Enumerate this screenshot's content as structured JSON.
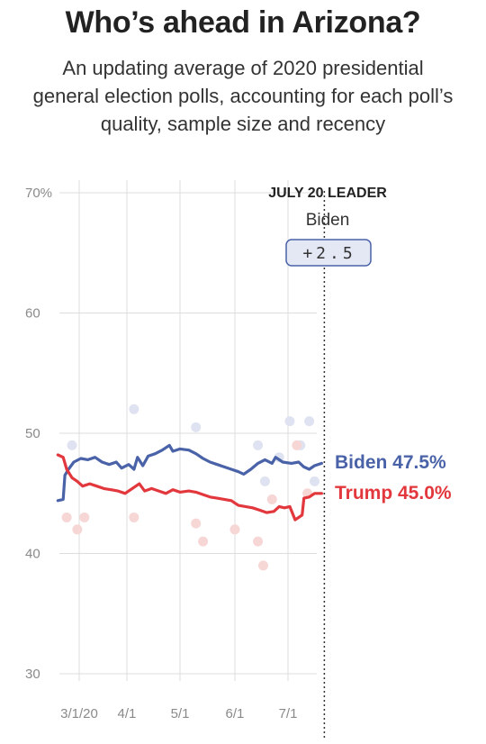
{
  "header": {
    "title": "Who’s ahead in Arizona?",
    "subtitle": "An updating average of 2020 presidential general election polls, accounting for each poll’s quality, sample size and recency"
  },
  "leader_box": {
    "heading": "JULY 20 LEADER",
    "candidate": "Biden",
    "margin": "+2.5"
  },
  "colors": {
    "biden": "#4a63a8",
    "trump": "#e2383d",
    "biden_dots": "#dfe3f1",
    "trump_dots": "#f7d6d6",
    "margin_box_fill": "#e4e8f5",
    "grid": "#dddddd"
  },
  "chart_data": {
    "type": "line",
    "y_ticks": [
      "70%",
      "60",
      "50",
      "40",
      "30"
    ],
    "x_ticks": [
      "3/1/20",
      "4/1",
      "5/1",
      "6/1",
      "7/1"
    ],
    "x_tick_dates": [
      "2020-03-01",
      "2020-04-01",
      "2020-05-01",
      "2020-06-01",
      "2020-07-01"
    ],
    "x_range": [
      "2020-02-22",
      "2020-07-20"
    ],
    "ylim": [
      30,
      70
    ],
    "grid": true,
    "current_date": "2020-07-20",
    "series": [
      {
        "name": "Biden",
        "end_label": "Biden 47.5%",
        "color": "#4a63a8",
        "points": [
          [
            "2020-02-22",
            44.4
          ],
          [
            "2020-02-25",
            44.5
          ],
          [
            "2020-02-26",
            46.5
          ],
          [
            "2020-02-28",
            47.0
          ],
          [
            "2020-03-02",
            47.6
          ],
          [
            "2020-03-06",
            47.9
          ],
          [
            "2020-03-10",
            47.8
          ],
          [
            "2020-03-14",
            48.0
          ],
          [
            "2020-03-18",
            47.6
          ],
          [
            "2020-03-22",
            47.4
          ],
          [
            "2020-03-26",
            47.6
          ],
          [
            "2020-03-29",
            47.1
          ],
          [
            "2020-04-02",
            47.4
          ],
          [
            "2020-04-05",
            47.0
          ],
          [
            "2020-04-07",
            48.0
          ],
          [
            "2020-04-10",
            47.3
          ],
          [
            "2020-04-13",
            48.1
          ],
          [
            "2020-04-17",
            48.3
          ],
          [
            "2020-04-21",
            48.6
          ],
          [
            "2020-04-25",
            49.0
          ],
          [
            "2020-04-27",
            48.5
          ],
          [
            "2020-05-01",
            48.7
          ],
          [
            "2020-05-06",
            48.6
          ],
          [
            "2020-05-10",
            48.3
          ],
          [
            "2020-05-14",
            47.9
          ],
          [
            "2020-05-18",
            47.6
          ],
          [
            "2020-05-22",
            47.4
          ],
          [
            "2020-05-26",
            47.2
          ],
          [
            "2020-05-30",
            47.0
          ],
          [
            "2020-06-03",
            46.8
          ],
          [
            "2020-06-06",
            46.6
          ],
          [
            "2020-06-10",
            47.0
          ],
          [
            "2020-06-14",
            47.5
          ],
          [
            "2020-06-18",
            47.8
          ],
          [
            "2020-06-22",
            47.5
          ],
          [
            "2020-06-24",
            48.0
          ],
          [
            "2020-06-28",
            47.6
          ],
          [
            "2020-07-03",
            47.5
          ],
          [
            "2020-07-07",
            47.6
          ],
          [
            "2020-07-10",
            47.2
          ],
          [
            "2020-07-13",
            47.0
          ],
          [
            "2020-07-16",
            47.3
          ],
          [
            "2020-07-20",
            47.5
          ]
        ]
      },
      {
        "name": "Trump",
        "end_label": "Trump 45.0%",
        "color": "#e2383d",
        "points": [
          [
            "2020-02-22",
            48.2
          ],
          [
            "2020-02-25",
            48.0
          ],
          [
            "2020-02-27",
            47.0
          ],
          [
            "2020-03-01",
            46.3
          ],
          [
            "2020-03-04",
            46.0
          ],
          [
            "2020-03-07",
            45.6
          ],
          [
            "2020-03-11",
            45.8
          ],
          [
            "2020-03-15",
            45.6
          ],
          [
            "2020-03-19",
            45.4
          ],
          [
            "2020-03-23",
            45.3
          ],
          [
            "2020-03-27",
            45.2
          ],
          [
            "2020-03-31",
            45.0
          ],
          [
            "2020-04-04",
            45.4
          ],
          [
            "2020-04-08",
            45.8
          ],
          [
            "2020-04-11",
            45.2
          ],
          [
            "2020-04-15",
            45.4
          ],
          [
            "2020-04-19",
            45.2
          ],
          [
            "2020-04-23",
            45.0
          ],
          [
            "2020-04-27",
            45.3
          ],
          [
            "2020-05-01",
            45.1
          ],
          [
            "2020-05-06",
            45.2
          ],
          [
            "2020-05-10",
            45.1
          ],
          [
            "2020-05-14",
            44.9
          ],
          [
            "2020-05-18",
            44.7
          ],
          [
            "2020-05-22",
            44.6
          ],
          [
            "2020-05-26",
            44.5
          ],
          [
            "2020-05-30",
            44.4
          ],
          [
            "2020-06-03",
            44.0
          ],
          [
            "2020-06-07",
            43.9
          ],
          [
            "2020-06-11",
            43.8
          ],
          [
            "2020-06-15",
            43.6
          ],
          [
            "2020-06-19",
            43.4
          ],
          [
            "2020-06-23",
            43.5
          ],
          [
            "2020-06-26",
            43.9
          ],
          [
            "2020-06-29",
            43.8
          ],
          [
            "2020-07-02",
            43.9
          ],
          [
            "2020-07-05",
            42.8
          ],
          [
            "2020-07-07",
            43.0
          ],
          [
            "2020-07-09",
            43.2
          ],
          [
            "2020-07-10",
            44.6
          ],
          [
            "2020-07-13",
            44.7
          ],
          [
            "2020-07-16",
            45.0
          ],
          [
            "2020-07-20",
            45.0
          ]
        ]
      }
    ],
    "poll_dots": [
      {
        "series": "Biden",
        "date": "2020-03-01",
        "value": 49
      },
      {
        "series": "Biden",
        "date": "2020-04-05",
        "value": 52
      },
      {
        "series": "Biden",
        "date": "2020-05-10",
        "value": 50.5
      },
      {
        "series": "Biden",
        "date": "2020-06-14",
        "value": 49
      },
      {
        "series": "Biden",
        "date": "2020-06-26",
        "value": 48
      },
      {
        "series": "Biden",
        "date": "2020-07-02",
        "value": 51
      },
      {
        "series": "Biden",
        "date": "2020-07-08",
        "value": 49
      },
      {
        "series": "Biden",
        "date": "2020-07-13",
        "value": 51
      },
      {
        "series": "Biden",
        "date": "2020-07-16",
        "value": 46
      },
      {
        "series": "Biden",
        "date": "2020-06-18",
        "value": 46
      },
      {
        "series": "Trump",
        "date": "2020-02-27",
        "value": 43
      },
      {
        "series": "Trump",
        "date": "2020-03-04",
        "value": 42
      },
      {
        "series": "Trump",
        "date": "2020-03-08",
        "value": 43
      },
      {
        "series": "Trump",
        "date": "2020-04-05",
        "value": 43
      },
      {
        "series": "Trump",
        "date": "2020-05-10",
        "value": 42.5
      },
      {
        "series": "Trump",
        "date": "2020-05-14",
        "value": 41
      },
      {
        "series": "Trump",
        "date": "2020-06-01",
        "value": 42
      },
      {
        "series": "Trump",
        "date": "2020-06-14",
        "value": 41
      },
      {
        "series": "Trump",
        "date": "2020-06-17",
        "value": 39
      },
      {
        "series": "Trump",
        "date": "2020-06-22",
        "value": 44.5
      },
      {
        "series": "Trump",
        "date": "2020-07-06",
        "value": 49
      },
      {
        "series": "Trump",
        "date": "2020-07-12",
        "value": 45
      }
    ]
  }
}
